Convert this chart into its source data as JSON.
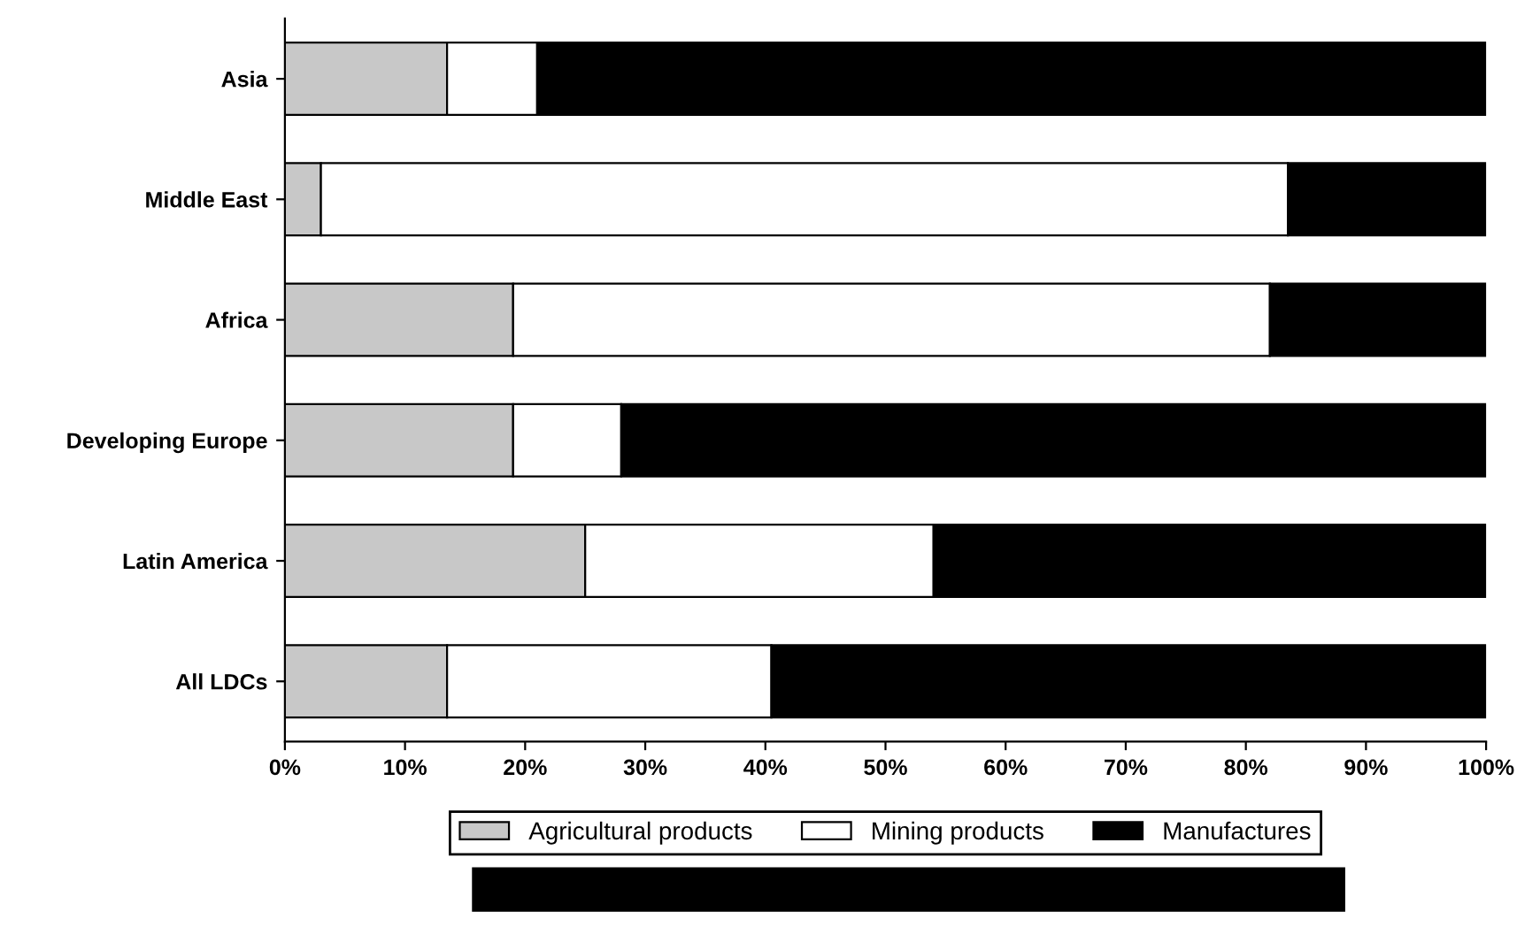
{
  "chart_data": {
    "type": "bar",
    "orientation": "horizontal",
    "stacked": true,
    "categories": [
      "Asia",
      "Middle East",
      "Africa",
      "Developing Europe",
      "Latin America",
      "All LDCs"
    ],
    "series": [
      {
        "name": "Agricultural products",
        "color": "#c8c8c8",
        "values": [
          13.5,
          3,
          19,
          19,
          25,
          13.5
        ]
      },
      {
        "name": "Mining products",
        "color": "#ffffff",
        "values": [
          7.5,
          80.5,
          63,
          9,
          29,
          27
        ]
      },
      {
        "name": "Manufactures",
        "color": "#000000",
        "values": [
          79,
          16.5,
          18,
          72,
          46,
          59.5
        ]
      }
    ],
    "xlim": [
      0,
      100
    ],
    "xticks": [
      {
        "value": 0,
        "label": "0%"
      },
      {
        "value": 10,
        "label": "10%"
      },
      {
        "value": 20,
        "label": "20%"
      },
      {
        "value": 30,
        "label": "30%"
      },
      {
        "value": 40,
        "label": "40%"
      },
      {
        "value": 50,
        "label": "50%"
      },
      {
        "value": 60,
        "label": "60%"
      },
      {
        "value": 70,
        "label": "70%"
      },
      {
        "value": 80,
        "label": "80%"
      },
      {
        "value": 90,
        "label": "90%"
      },
      {
        "value": 100,
        "label": "100%"
      }
    ],
    "grid": false,
    "legend": "bottom"
  }
}
